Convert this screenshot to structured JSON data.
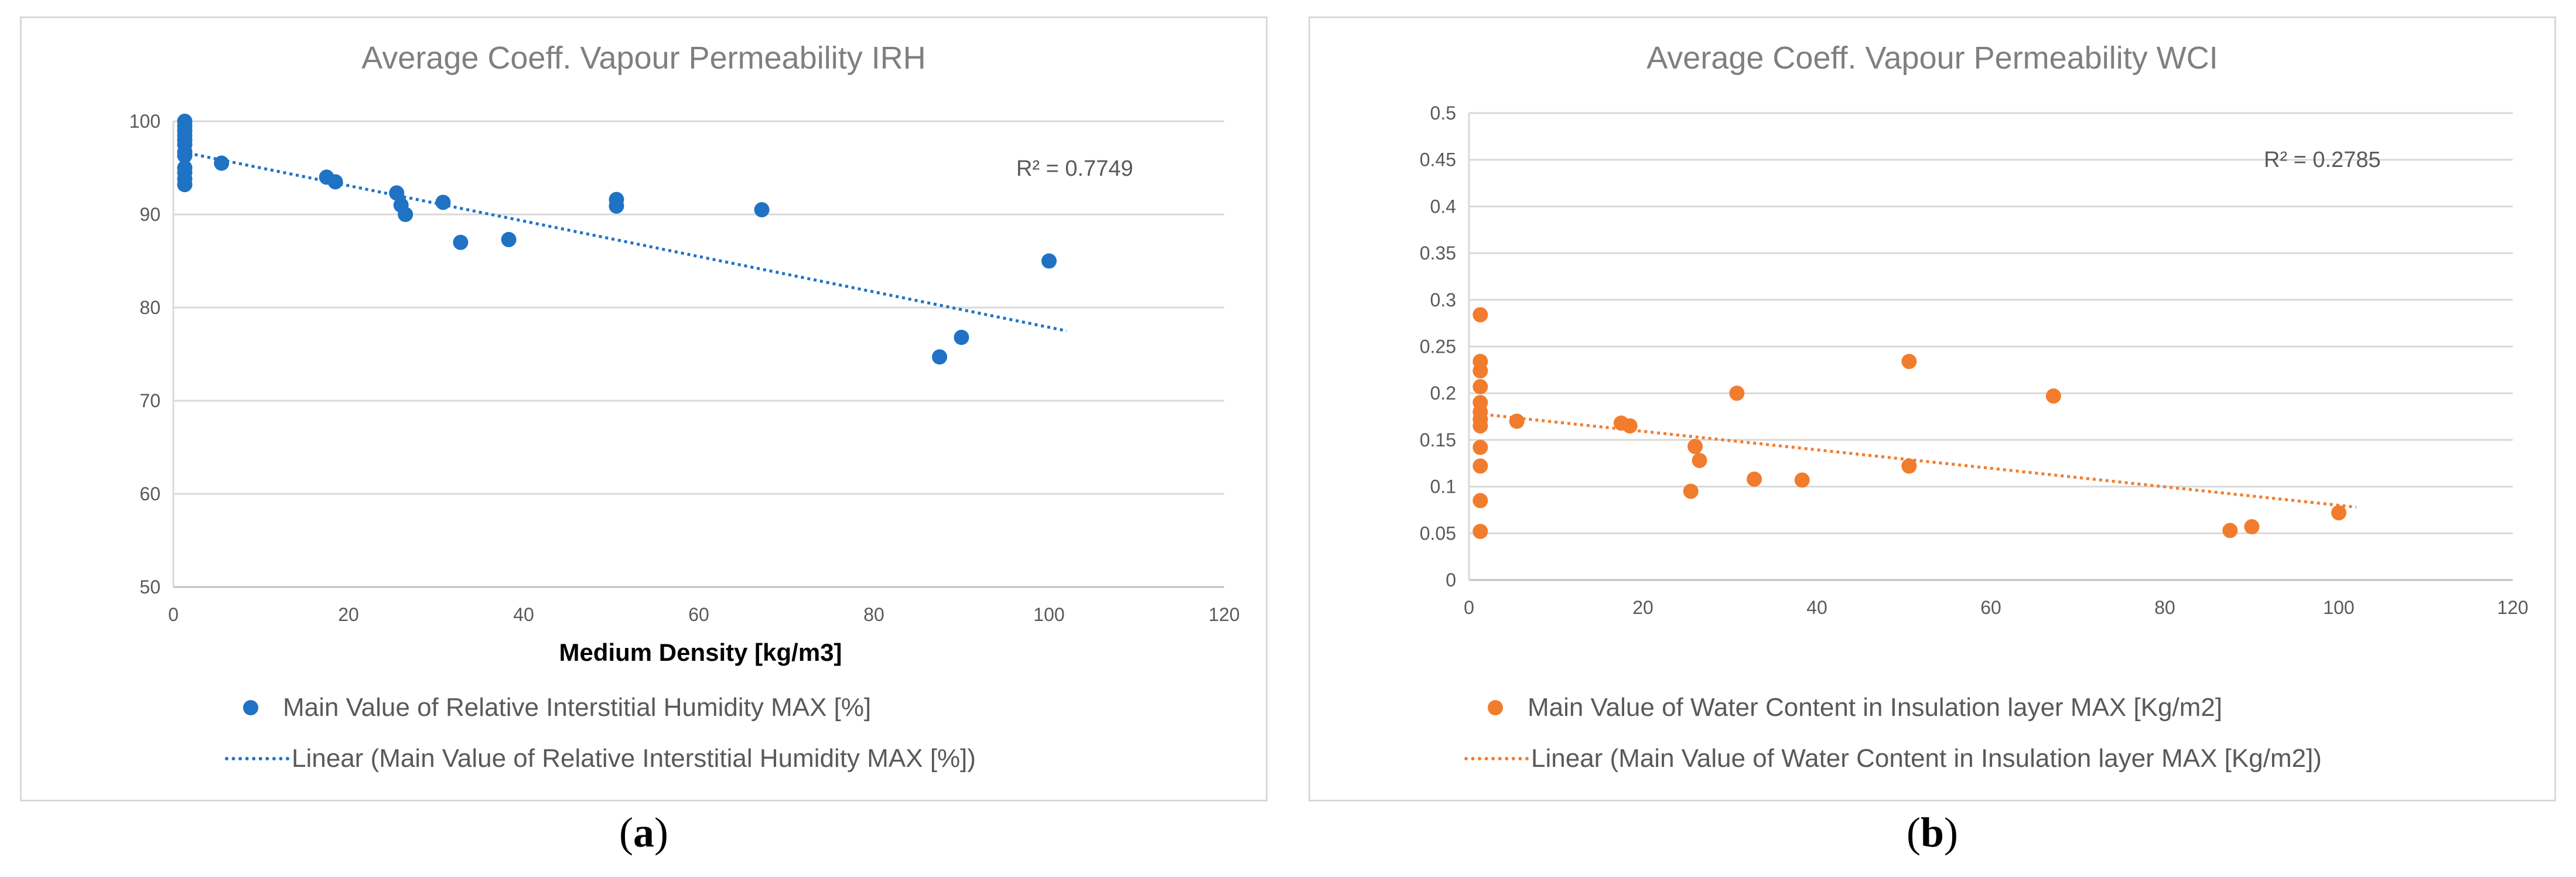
{
  "panels": [
    {
      "label_open": "(",
      "label_letter": "a",
      "label_close": ")",
      "legend": {
        "scatter": "Main Value of Relative Interstitial Humidity MAX [%]",
        "trend": "Linear (Main Value of Relative Interstitial Humidity MAX [%])"
      }
    },
    {
      "label_open": "(",
      "label_letter": "b",
      "label_close": ")",
      "legend": {
        "scatter": "Main Value of Water Content in Insulation layer MAX [Kg/m2]",
        "trend": "Linear (Main Value of Water Content in Insulation layer MAX [Kg/m2])"
      }
    }
  ],
  "chart_data": [
    {
      "type": "scatter",
      "title": "Average Coeff. Vapour Permeability IRH",
      "xlabel": "Medium Density [kg/m3]",
      "ylabel": "",
      "xlim": [
        0,
        120
      ],
      "ylim": [
        50,
        100
      ],
      "xticks": [
        "0",
        "20",
        "40",
        "60",
        "80",
        "100",
        "120"
      ],
      "yticks": [
        "50",
        "60",
        "70",
        "80",
        "90",
        "100"
      ],
      "grid": "horizontal",
      "legend_position": "bottom",
      "color": "#1f72c4",
      "annotation": "R² = 0.7749",
      "points": [
        [
          1.3,
          100
        ],
        [
          1.3,
          99.5
        ],
        [
          1.3,
          99
        ],
        [
          1.3,
          98.5
        ],
        [
          1.3,
          98
        ],
        [
          1.3,
          97.5
        ],
        [
          1.3,
          96.7
        ],
        [
          1.3,
          96.3
        ],
        [
          1.3,
          95
        ],
        [
          1.3,
          94.5
        ],
        [
          1.3,
          93.8
        ],
        [
          1.3,
          93.2
        ],
        [
          5.5,
          95.5
        ],
        [
          17.5,
          94
        ],
        [
          18.5,
          93.5
        ],
        [
          25.5,
          92.3
        ],
        [
          26,
          91
        ],
        [
          26.5,
          90
        ],
        [
          30.8,
          91.3
        ],
        [
          32.8,
          87
        ],
        [
          38.3,
          87.3
        ],
        [
          50.6,
          91.6
        ],
        [
          50.6,
          90.9
        ],
        [
          67.2,
          90.5
        ],
        [
          87.5,
          74.7
        ],
        [
          90,
          76.8
        ],
        [
          100,
          85
        ]
      ],
      "trendline": {
        "x": [
          1,
          102
        ],
        "y": [
          96.7,
          77.5
        ]
      }
    },
    {
      "type": "scatter",
      "title": "Average Coeff. Vapour Permeability WCI",
      "xlabel": "",
      "ylabel": "",
      "xlim": [
        0,
        120
      ],
      "ylim": [
        0,
        0.5
      ],
      "xticks": [
        "0",
        "20",
        "40",
        "60",
        "80",
        "100",
        "120"
      ],
      "yticks": [
        "0",
        "0.05",
        "0.1",
        "0.15",
        "0.2",
        "0.25",
        "0.3",
        "0.35",
        "0.4",
        "0.45",
        "0.5"
      ],
      "grid": "horizontal",
      "legend_position": "bottom",
      "color": "#f27c2e",
      "annotation": "R² = 0.2785",
      "points": [
        [
          1.3,
          0.284
        ],
        [
          1.3,
          0.234
        ],
        [
          1.3,
          0.224
        ],
        [
          1.3,
          0.207
        ],
        [
          1.3,
          0.19
        ],
        [
          1.3,
          0.18
        ],
        [
          1.3,
          0.172
        ],
        [
          1.3,
          0.165
        ],
        [
          1.3,
          0.142
        ],
        [
          1.3,
          0.122
        ],
        [
          1.3,
          0.085
        ],
        [
          1.3,
          0.052
        ],
        [
          5.5,
          0.17
        ],
        [
          17.5,
          0.168
        ],
        [
          18.5,
          0.165
        ],
        [
          25.5,
          0.095
        ],
        [
          26,
          0.143
        ],
        [
          26.5,
          0.128
        ],
        [
          30.8,
          0.2
        ],
        [
          32.8,
          0.108
        ],
        [
          38.3,
          0.107
        ],
        [
          50.6,
          0.234
        ],
        [
          50.6,
          0.122
        ],
        [
          67.2,
          0.197
        ],
        [
          87.5,
          0.053
        ],
        [
          90,
          0.057
        ],
        [
          100,
          0.072
        ]
      ],
      "trendline": {
        "x": [
          1,
          102
        ],
        "y": [
          0.178,
          0.078
        ]
      }
    }
  ]
}
